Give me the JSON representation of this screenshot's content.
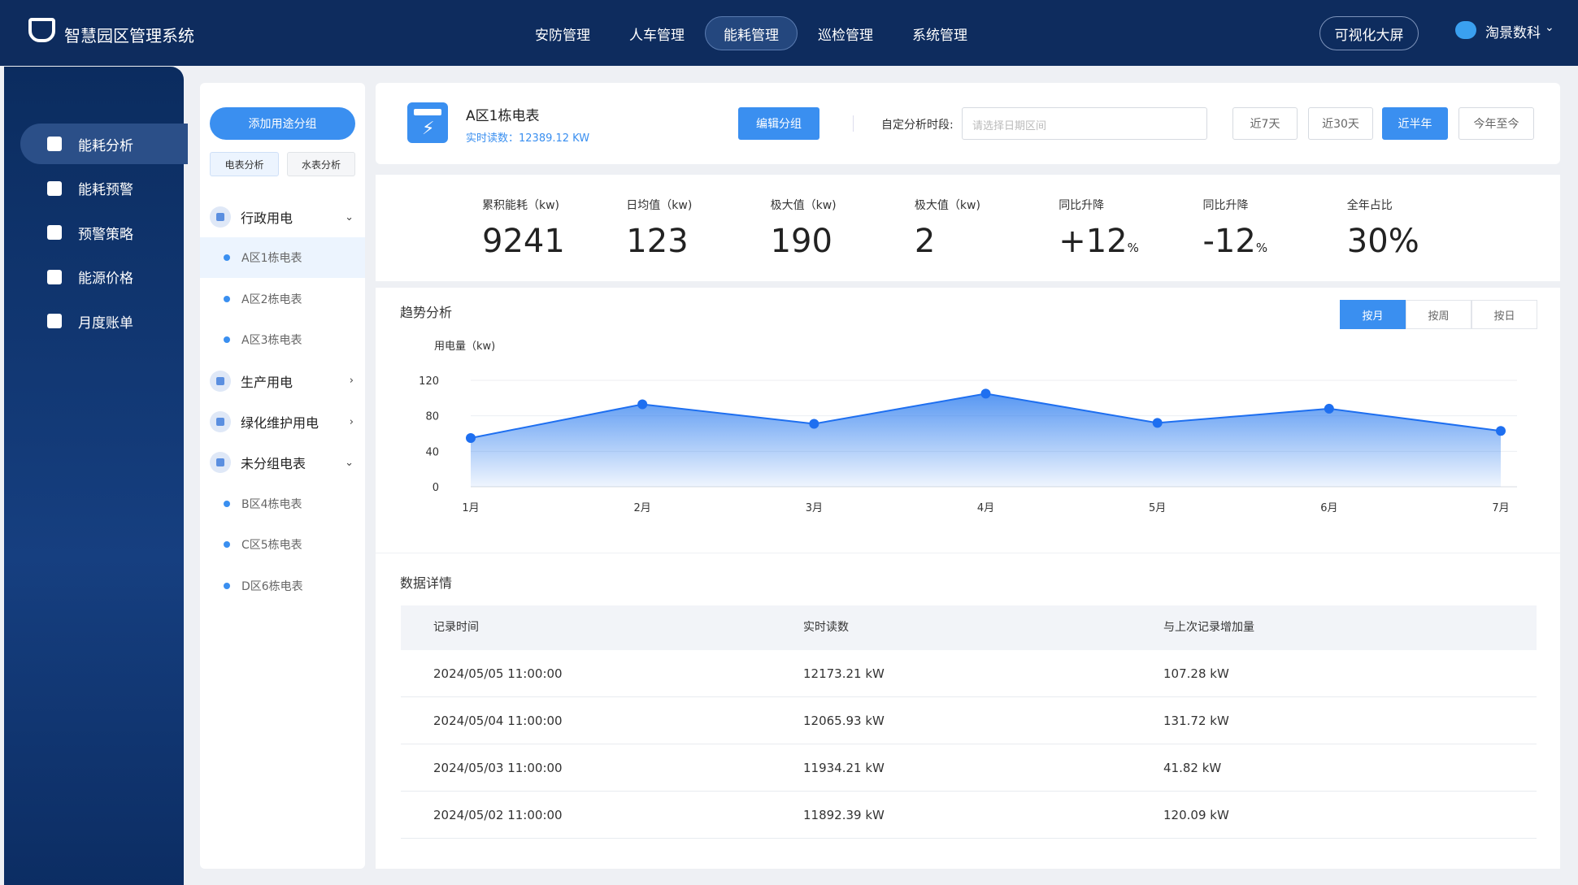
{
  "header": {
    "logo_text": "智慧园区管理系统",
    "nav": [
      {
        "label": "安防管理"
      },
      {
        "label": "人车管理"
      },
      {
        "label": "能耗管理",
        "active": true
      },
      {
        "label": "巡检管理"
      },
      {
        "label": "系统管理"
      }
    ],
    "screen_button": "可视化大屏",
    "user": "淘景数科"
  },
  "sidebar": [
    {
      "label": "能耗分析",
      "active": true
    },
    {
      "label": "能耗预警"
    },
    {
      "label": "预警策略"
    },
    {
      "label": "能源价格"
    },
    {
      "label": "月度账单"
    }
  ],
  "group_panel": {
    "add_button": "添加用途分组",
    "tabs": [
      "电表分析",
      "水表分析"
    ],
    "groups": [
      {
        "label": "行政用电",
        "expanded": true,
        "items": [
          {
            "label": "A区1栋电表",
            "active": true
          },
          {
            "label": "A区2栋电表"
          },
          {
            "label": "A区3栋电表"
          }
        ]
      },
      {
        "label": "生产用电",
        "expanded": false,
        "items": []
      },
      {
        "label": "绿化维护用电",
        "expanded": false,
        "items": []
      },
      {
        "label": "未分组电表",
        "expanded": true,
        "items": [
          {
            "label": "B区4栋电表"
          },
          {
            "label": "C区5栋电表"
          },
          {
            "label": "D区6栋电表"
          }
        ]
      }
    ]
  },
  "meter": {
    "name": "A区1栋电表",
    "reading": "实时读数：12389.12 KW"
  },
  "toolbar": {
    "edit_button": "编辑分组",
    "period_label": "自定分析时段:",
    "date_placeholder": "请选择日期区间",
    "ranges": [
      {
        "label": "近7天"
      },
      {
        "label": "近30天"
      },
      {
        "label": "近半年",
        "active": true
      },
      {
        "label": "今年至今"
      }
    ]
  },
  "metrics": [
    {
      "label": "累积能耗（kw)",
      "value": "9241"
    },
    {
      "label": "日均值（kw)",
      "value": "123"
    },
    {
      "label": "极大值（kw)",
      "value": "190"
    },
    {
      "label": "极大值（kw)",
      "value": "2"
    },
    {
      "label": "同比升降",
      "value": "+12",
      "unit": "%"
    },
    {
      "label": "同比升降",
      "value": "-12",
      "unit": "%"
    },
    {
      "label": "全年占比",
      "value": "30%"
    }
  ],
  "trend": {
    "title": "趋势分析",
    "modes": [
      {
        "label": "按月",
        "active": true
      },
      {
        "label": "按周"
      },
      {
        "label": "按日"
      }
    ],
    "chart": {
      "type": "line",
      "y_label": "用电量（kw)",
      "categories": [
        "1月",
        "2月",
        "3月",
        "4月",
        "5月",
        "6月",
        "7月"
      ],
      "values": [
        55,
        93,
        71,
        105,
        72,
        88,
        63
      ],
      "color": "#1e6ff0",
      "ylim": [
        0,
        120
      ],
      "yticks": [
        0,
        40,
        80,
        120
      ],
      "grid": true
    }
  },
  "table": {
    "title": "数据详情",
    "columns": [
      "记录时间",
      "实时读数",
      "与上次记录增加量"
    ],
    "rows": [
      [
        "2024/05/05 11:00:00",
        "12173.21 kW",
        "107.28 kW"
      ],
      [
        "2024/05/04 11:00:00",
        "12065.93 kW",
        "131.72 kW"
      ],
      [
        "2024/05/03 11:00:00",
        "11934.21 kW",
        "41.82 kW"
      ],
      [
        "2024/05/02 11:00:00",
        "11892.39 kW",
        "120.09 kW"
      ]
    ]
  }
}
